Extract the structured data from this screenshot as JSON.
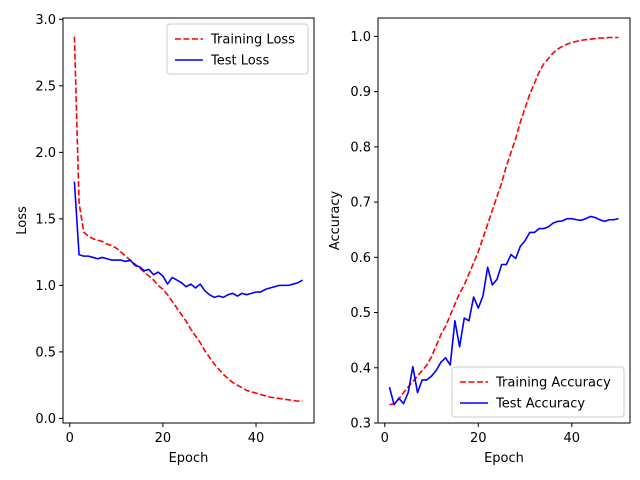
{
  "chart_data": [
    {
      "type": "line",
      "xlabel": "Epoch",
      "ylabel": "Loss",
      "xlim": [
        -1.45,
        52.45
      ],
      "ylim": [
        -0.0345,
        3.01
      ],
      "xticks": [
        0,
        20,
        40
      ],
      "xtick_labels": [
        "0",
        "20",
        "40"
      ],
      "yticks": [
        0.0,
        0.5,
        1.0,
        1.5,
        2.0,
        2.5,
        3.0
      ],
      "ytick_labels": [
        "0.0",
        "0.5",
        "1.0",
        "1.5",
        "2.0",
        "2.5",
        "3.0"
      ],
      "grid": false,
      "legend": "upper-right",
      "x": [
        1,
        2,
        3,
        4,
        5,
        6,
        7,
        8,
        9,
        10,
        11,
        12,
        13,
        14,
        15,
        16,
        17,
        18,
        19,
        20,
        21,
        22,
        23,
        24,
        25,
        26,
        27,
        28,
        29,
        30,
        31,
        32,
        33,
        34,
        35,
        36,
        37,
        38,
        39,
        40,
        41,
        42,
        43,
        44,
        45,
        46,
        47,
        48,
        49,
        50
      ],
      "series": [
        {
          "name": "Training Loss",
          "color": "#ff0000",
          "dash": "dashed",
          "values": [
            2.87,
            1.62,
            1.4,
            1.37,
            1.35,
            1.34,
            1.33,
            1.31,
            1.3,
            1.28,
            1.25,
            1.22,
            1.19,
            1.16,
            1.13,
            1.1,
            1.07,
            1.04,
            1.0,
            0.97,
            0.93,
            0.88,
            0.83,
            0.78,
            0.73,
            0.67,
            0.62,
            0.57,
            0.51,
            0.46,
            0.41,
            0.37,
            0.33,
            0.3,
            0.27,
            0.25,
            0.23,
            0.21,
            0.2,
            0.19,
            0.18,
            0.17,
            0.16,
            0.155,
            0.15,
            0.145,
            0.14,
            0.135,
            0.13,
            0.13
          ]
        },
        {
          "name": "Test Loss",
          "color": "#0000ff",
          "dash": "solid",
          "values": [
            1.78,
            1.23,
            1.22,
            1.22,
            1.21,
            1.2,
            1.21,
            1.2,
            1.19,
            1.19,
            1.19,
            1.18,
            1.19,
            1.15,
            1.14,
            1.11,
            1.12,
            1.08,
            1.1,
            1.07,
            1.01,
            1.06,
            1.04,
            1.02,
            0.99,
            1.01,
            0.98,
            1.01,
            0.96,
            0.93,
            0.91,
            0.92,
            0.91,
            0.93,
            0.94,
            0.92,
            0.94,
            0.93,
            0.94,
            0.95,
            0.95,
            0.97,
            0.98,
            0.99,
            1.0,
            1.0,
            1.0,
            1.01,
            1.02,
            1.04
          ]
        }
      ]
    },
    {
      "type": "line",
      "xlabel": "Epoch",
      "ylabel": "Accuracy",
      "xlim": [
        -1.45,
        52.45
      ],
      "ylim": [
        0.3,
        1.0333
      ],
      "xticks": [
        0,
        20,
        40
      ],
      "xtick_labels": [
        "0",
        "20",
        "40"
      ],
      "yticks": [
        0.3,
        0.4,
        0.5,
        0.6,
        0.7,
        0.8,
        0.9,
        1.0
      ],
      "ytick_labels": [
        "0.3",
        "0.4",
        "0.5",
        "0.6",
        "0.7",
        "0.8",
        "0.9",
        "1.0"
      ],
      "grid": false,
      "legend": "lower-right",
      "x": [
        1,
        2,
        3,
        4,
        5,
        6,
        7,
        8,
        9,
        10,
        11,
        12,
        13,
        14,
        15,
        16,
        17,
        18,
        19,
        20,
        21,
        22,
        23,
        24,
        25,
        26,
        27,
        28,
        29,
        30,
        31,
        32,
        33,
        34,
        35,
        36,
        37,
        38,
        39,
        40,
        41,
        42,
        43,
        44,
        45,
        46,
        47,
        48,
        49,
        50
      ],
      "series": [
        {
          "name": "Training Accuracy",
          "color": "#ff0000",
          "dash": "dashed",
          "values": [
            0.333,
            0.335,
            0.343,
            0.355,
            0.365,
            0.375,
            0.385,
            0.395,
            0.405,
            0.42,
            0.44,
            0.46,
            0.475,
            0.495,
            0.515,
            0.535,
            0.55,
            0.57,
            0.59,
            0.61,
            0.635,
            0.66,
            0.685,
            0.71,
            0.735,
            0.765,
            0.79,
            0.815,
            0.845,
            0.87,
            0.895,
            0.915,
            0.935,
            0.95,
            0.96,
            0.97,
            0.977,
            0.982,
            0.986,
            0.989,
            0.991,
            0.993,
            0.994,
            0.995,
            0.996,
            0.997,
            0.997,
            0.998,
            0.998,
            0.998
          ]
        },
        {
          "name": "Test Accuracy",
          "color": "#0000ff",
          "dash": "solid",
          "values": [
            0.365,
            0.333,
            0.345,
            0.335,
            0.355,
            0.402,
            0.355,
            0.378,
            0.378,
            0.385,
            0.395,
            0.41,
            0.418,
            0.405,
            0.485,
            0.438,
            0.49,
            0.485,
            0.528,
            0.508,
            0.53,
            0.582,
            0.55,
            0.56,
            0.587,
            0.587,
            0.605,
            0.598,
            0.62,
            0.63,
            0.645,
            0.645,
            0.652,
            0.652,
            0.655,
            0.662,
            0.665,
            0.666,
            0.67,
            0.67,
            0.668,
            0.667,
            0.67,
            0.674,
            0.672,
            0.668,
            0.665,
            0.668,
            0.668,
            0.67
          ]
        }
      ]
    }
  ]
}
